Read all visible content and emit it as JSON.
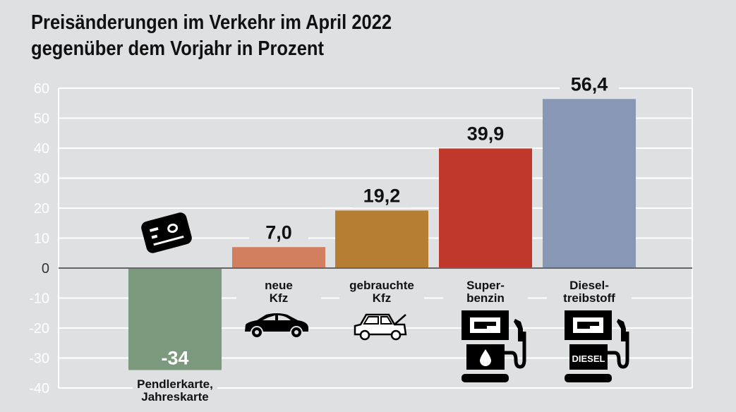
{
  "title_line1": "Preisänderungen im Verkehr im April 2022",
  "title_line2": "gegenüber dem Vorjahr in Prozent",
  "chart_data": {
    "type": "bar",
    "title": "Preisänderungen im Verkehr im April 2022 gegenüber dem Vorjahr in Prozent",
    "categories": [
      "Pendlerkarte, Jahreskarte",
      "neue Kfz",
      "gebrauchte Kfz",
      "Superbenzin",
      "Dieseltreibstoff"
    ],
    "category_lines": [
      [
        "Pendlerkarte,",
        "Jahreskarte"
      ],
      [
        "neue",
        "Kfz"
      ],
      [
        "gebrauchte",
        "Kfz"
      ],
      [
        "Super-",
        "benzin"
      ],
      [
        "Diesel-",
        "treibstoff"
      ]
    ],
    "values": [
      -34,
      7.0,
      19.2,
      39.9,
      56.4
    ],
    "value_labels": [
      "-34",
      "7,0",
      "19,2",
      "39,9",
      "56,4"
    ],
    "colors": [
      "#7b997c",
      "#d27f60",
      "#b57e33",
      "#c0382c",
      "#8898b4"
    ],
    "icons": [
      "ticket-card-icon",
      "car-icon",
      "used-car-icon",
      "fuel-pump-icon",
      "diesel-pump-icon"
    ],
    "diesel_icon_text": "DIESEL",
    "yticks": [
      60,
      50,
      40,
      30,
      20,
      10,
      0,
      -10,
      -20,
      -30,
      -40
    ],
    "ylim": [
      -40,
      60
    ],
    "xlabel": "",
    "ylabel": "",
    "grid": true
  }
}
